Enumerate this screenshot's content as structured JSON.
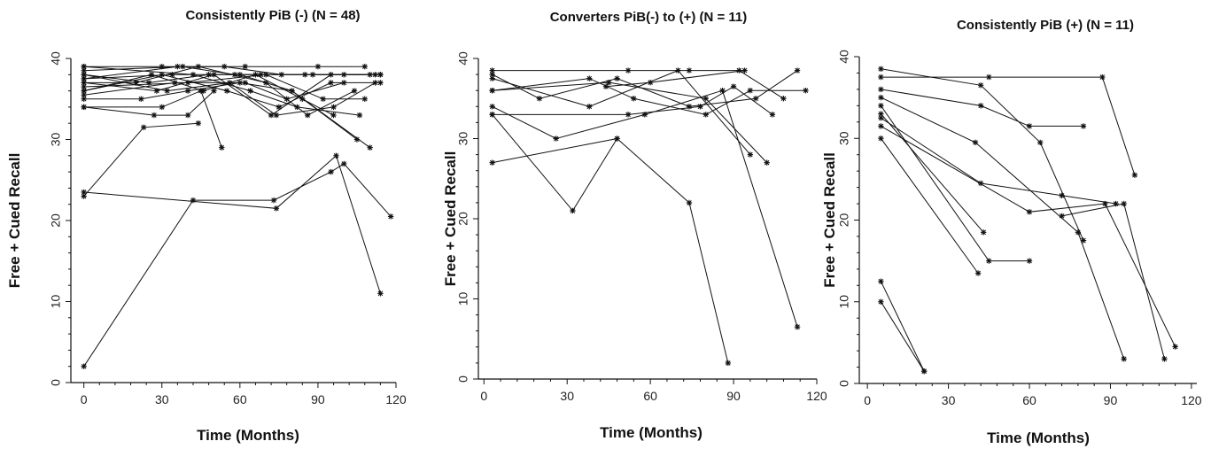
{
  "chart_data": [
    {
      "type": "line",
      "title": "Consistently PiB (-) (N = 48)",
      "xlabel": "Time (Months)",
      "ylabel": "Free + Cued Recall",
      "xlim": [
        -5,
        120
      ],
      "ylim": [
        0,
        40
      ],
      "xticks": [
        0,
        30,
        60,
        90,
        120
      ],
      "yticks": [
        0,
        10,
        20,
        30,
        40
      ],
      "marker": "asterisk",
      "series": [
        {
          "points": [
            [
              0,
              2
            ],
            [
              42,
              22.5
            ],
            [
              73,
              22.5
            ],
            [
              95,
              26
            ],
            [
              100,
              27
            ],
            [
              118,
              20.5
            ]
          ]
        },
        {
          "points": [
            [
              0,
              23
            ],
            [
              23,
              31.5
            ],
            [
              44,
              32
            ]
          ]
        },
        {
          "points": [
            [
              0,
              23.5
            ],
            [
              74,
              21.5
            ],
            [
              97,
              28
            ],
            [
              114,
              11
            ]
          ]
        },
        {
          "points": [
            [
              0,
              34
            ],
            [
              30,
              34
            ],
            [
              45,
              36
            ],
            [
              53,
              29
            ]
          ]
        },
        {
          "points": [
            [
              0,
              34
            ],
            [
              27,
              33
            ],
            [
              40,
              33
            ],
            [
              50,
              36
            ]
          ]
        },
        {
          "points": [
            [
              0,
              35
            ],
            [
              22,
              35
            ],
            [
              40,
              36
            ],
            [
              60,
              37
            ],
            [
              80,
              36
            ],
            [
              110,
              29
            ]
          ]
        },
        {
          "points": [
            [
              0,
              35.5
            ],
            [
              35,
              37
            ],
            [
              62,
              37
            ],
            [
              78,
              35
            ],
            [
              100,
              37
            ]
          ]
        },
        {
          "points": [
            [
              0,
              36
            ],
            [
              30,
              38
            ],
            [
              55,
              36
            ],
            [
              75,
              34
            ],
            [
              95,
              37
            ],
            [
              114,
              37
            ]
          ]
        },
        {
          "points": [
            [
              0,
              36.5
            ],
            [
              40,
              37
            ],
            [
              70,
              38
            ],
            [
              92,
              35
            ],
            [
              108,
              35
            ]
          ]
        },
        {
          "points": [
            [
              0,
              37
            ],
            [
              28,
              36
            ],
            [
              50,
              38
            ],
            [
              72,
              33
            ],
            [
              95,
              38
            ],
            [
              112,
              38
            ]
          ]
        },
        {
          "points": [
            [
              0,
              37.5
            ],
            [
              34,
              38
            ],
            [
              60,
              38
            ],
            [
              80,
              36
            ],
            [
              105,
              30
            ]
          ]
        },
        {
          "points": [
            [
              0,
              38
            ],
            [
              25,
              37
            ],
            [
              48,
              38
            ],
            [
              68,
              38
            ],
            [
              88,
              38
            ],
            [
              114,
              38
            ]
          ]
        },
        {
          "points": [
            [
              0,
              38.5
            ],
            [
              38,
              39
            ],
            [
              58,
              38
            ],
            [
              85,
              38
            ],
            [
              110,
              38
            ]
          ]
        },
        {
          "points": [
            [
              0,
              39
            ],
            [
              30,
              39
            ],
            [
              62,
              39
            ],
            [
              90,
              39
            ],
            [
              108,
              39
            ]
          ]
        },
        {
          "points": [
            [
              0,
              37
            ],
            [
              20,
              37
            ],
            [
              44,
              39
            ],
            [
              70,
              37
            ],
            [
              86,
              33
            ],
            [
              104,
              36
            ]
          ]
        },
        {
          "points": [
            [
              0,
              38
            ],
            [
              32,
              36
            ],
            [
              56,
              37
            ],
            [
              74,
              33
            ],
            [
              96,
              34
            ],
            [
              112,
              37
            ]
          ]
        },
        {
          "points": [
            [
              0,
              36
            ],
            [
              26,
              38
            ],
            [
              46,
              36
            ],
            [
              66,
              38
            ],
            [
              84,
              35
            ],
            [
              96,
              33
            ]
          ]
        },
        {
          "points": [
            [
              0,
              39
            ],
            [
              42,
              38
            ],
            [
              64,
              36
            ],
            [
              82,
              34
            ],
            [
              106,
              33
            ]
          ]
        },
        {
          "points": [
            [
              0,
              37.5
            ],
            [
              36,
              39
            ],
            [
              54,
              39
            ],
            [
              76,
              38
            ],
            [
              100,
              38
            ],
            [
              114,
              38
            ]
          ]
        }
      ]
    },
    {
      "type": "line",
      "title": "Converters PiB(-) to (+) (N = 11)",
      "xlabel": "Time (Months)",
      "ylabel": "Free + Cued Recall",
      "xlim": [
        -2,
        120
      ],
      "ylim": [
        0,
        40
      ],
      "xticks": [
        0,
        30,
        60,
        90,
        120
      ],
      "yticks": [
        0,
        10,
        20,
        30,
        40
      ],
      "marker": "asterisk",
      "series": [
        {
          "points": [
            [
              3,
              38.5
            ],
            [
              52,
              38.5
            ],
            [
              74,
              38.5
            ],
            [
              92,
              38.5
            ],
            [
              108,
              35
            ]
          ]
        },
        {
          "points": [
            [
              3,
              38
            ],
            [
              20,
              35
            ],
            [
              48,
              37.5
            ],
            [
              74,
              34
            ],
            [
              98,
              35
            ],
            [
              113,
              38.5
            ]
          ]
        },
        {
          "points": [
            [
              3,
              37.5
            ],
            [
              38,
              34
            ],
            [
              70,
              38.5
            ],
            [
              96,
              28
            ]
          ]
        },
        {
          "points": [
            [
              3,
              36
            ],
            [
              38,
              37.5
            ],
            [
              54,
              35
            ],
            [
              80,
              33
            ],
            [
              96,
              36
            ],
            [
              116,
              36
            ]
          ]
        },
        {
          "points": [
            [
              3,
              36
            ],
            [
              45,
              37
            ],
            [
              80,
              35
            ],
            [
              102,
              27
            ]
          ]
        },
        {
          "points": [
            [
              3,
              33
            ],
            [
              52,
              33
            ],
            [
              78,
              34
            ],
            [
              90,
              36.5
            ],
            [
              104,
              33
            ]
          ]
        },
        {
          "points": [
            [
              3,
              33
            ],
            [
              32,
              21
            ],
            [
              48,
              30
            ],
            [
              74,
              22
            ],
            [
              88,
              2
            ]
          ]
        },
        {
          "points": [
            [
              3,
              34
            ],
            [
              26,
              30
            ],
            [
              58,
              33
            ],
            [
              86,
              36
            ],
            [
              113,
              6.5
            ]
          ]
        },
        {
          "points": [
            [
              3,
              27
            ],
            [
              48,
              30
            ]
          ]
        },
        {
          "points": [
            [
              44,
              36.5
            ],
            [
              60,
              37
            ],
            [
              94,
              38.5
            ]
          ]
        }
      ]
    },
    {
      "type": "line",
      "title": "Consistently PiB (+) (N = 11)",
      "xlabel": "Time (Months)",
      "ylabel": "Free + Cued Recall",
      "xlim": [
        -3,
        122
      ],
      "ylim": [
        0,
        40
      ],
      "xticks": [
        0,
        30,
        60,
        90,
        120
      ],
      "yticks": [
        0,
        10,
        20,
        30,
        40
      ],
      "marker": "asterisk",
      "series": [
        {
          "points": [
            [
              5,
              38.5
            ],
            [
              42,
              36.5
            ],
            [
              64,
              29.5
            ],
            [
              80,
              17.5
            ]
          ]
        },
        {
          "points": [
            [
              5,
              37.5
            ],
            [
              45,
              37.5
            ],
            [
              87,
              37.5
            ],
            [
              99,
              25.5
            ]
          ]
        },
        {
          "points": [
            [
              5,
              36
            ],
            [
              42,
              34
            ],
            [
              60,
              31.5
            ],
            [
              80,
              31.5
            ]
          ]
        },
        {
          "points": [
            [
              5,
              35
            ],
            [
              40,
              29.5
            ],
            [
              78,
              18.5
            ],
            [
              95,
              3
            ]
          ]
        },
        {
          "points": [
            [
              5,
              34
            ],
            [
              45,
              15
            ],
            [
              60,
              15
            ]
          ]
        },
        {
          "points": [
            [
              5,
              32.5
            ],
            [
              42,
              24.5
            ],
            [
              72,
              23
            ],
            [
              92,
              22
            ]
          ]
        },
        {
          "points": [
            [
              5,
              31.5
            ],
            [
              60,
              21
            ],
            [
              88,
              22
            ],
            [
              114,
              4.5
            ]
          ]
        },
        {
          "points": [
            [
              5,
              30
            ],
            [
              41,
              13.5
            ]
          ]
        },
        {
          "points": [
            [
              5,
              33
            ],
            [
              43,
              18.5
            ]
          ]
        },
        {
          "points": [
            [
              5,
              12.5
            ],
            [
              21,
              1.5
            ]
          ]
        },
        {
          "points": [
            [
              5,
              10
            ],
            [
              21,
              1.5
            ]
          ]
        },
        {
          "points": [
            [
              72,
              20.5
            ],
            [
              95,
              22
            ],
            [
              110,
              3
            ]
          ]
        }
      ]
    }
  ]
}
